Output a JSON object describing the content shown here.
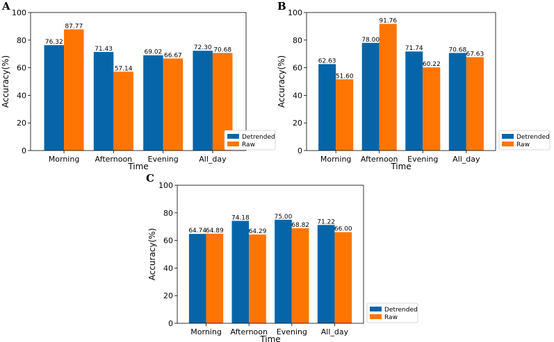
{
  "colors": {
    "detrended": "#0665a8",
    "raw": "#fe7504"
  },
  "chart_data": [
    {
      "type": "bar",
      "panel": "A",
      "categories": [
        "Morning",
        "Afternoon",
        "Evening",
        "All_day"
      ],
      "series": [
        {
          "name": "Detrended",
          "values": [
            76.32,
            71.43,
            69.02,
            72.3
          ]
        },
        {
          "name": "Raw",
          "values": [
            87.77,
            57.14,
            66.67,
            70.68
          ]
        }
      ],
      "data_labels": [
        [
          "76.32",
          "71.43",
          "69.02",
          "72.30"
        ],
        [
          "87.77",
          "57.14",
          "66.67",
          "70.68"
        ]
      ],
      "xlabel": "Time",
      "ylabel": "Accuracy(%)",
      "ylim": [
        0,
        100
      ],
      "yticks": [
        0,
        20,
        40,
        60,
        80,
        100
      ],
      "legend": [
        "Detrended",
        "Raw"
      ],
      "legend_position": "right"
    },
    {
      "type": "bar",
      "panel": "B",
      "categories": [
        "Morning",
        "Afternoon",
        "Evening",
        "All_day"
      ],
      "series": [
        {
          "name": "Detrended",
          "values": [
            62.63,
            78.0,
            71.74,
            70.68
          ]
        },
        {
          "name": "Raw",
          "values": [
            51.6,
            91.76,
            60.22,
            67.63
          ]
        }
      ],
      "data_labels": [
        [
          "62.63",
          "78.00",
          "71.74",
          "70.68"
        ],
        [
          "51.60",
          "91.76",
          "60.22",
          "67.63"
        ]
      ],
      "xlabel": "Time",
      "ylabel": "Accuracy(%)",
      "ylim": [
        0,
        100
      ],
      "yticks": [
        0,
        20,
        40,
        60,
        80,
        100
      ],
      "legend": [
        "Detrended",
        "Raw"
      ],
      "legend_position": "right"
    },
    {
      "type": "bar",
      "panel": "C",
      "categories": [
        "Morning",
        "Afternoon",
        "Evening",
        "All_day"
      ],
      "series": [
        {
          "name": "Detrended",
          "values": [
            64.74,
            74.18,
            75.0,
            71.22
          ]
        },
        {
          "name": "Raw",
          "values": [
            64.89,
            64.29,
            68.82,
            66.0
          ]
        }
      ],
      "data_labels": [
        [
          "64.74",
          "74.18",
          "75.00",
          "71.22"
        ],
        [
          "64.89",
          "64.29",
          "68.82",
          "66.00"
        ]
      ],
      "xlabel": "Time",
      "ylabel": "Accuracy(%)",
      "ylim": [
        0,
        100
      ],
      "yticks": [
        0,
        20,
        40,
        60,
        80,
        100
      ],
      "legend": [
        "Detrended",
        "Raw"
      ],
      "legend_position": "right"
    }
  ]
}
